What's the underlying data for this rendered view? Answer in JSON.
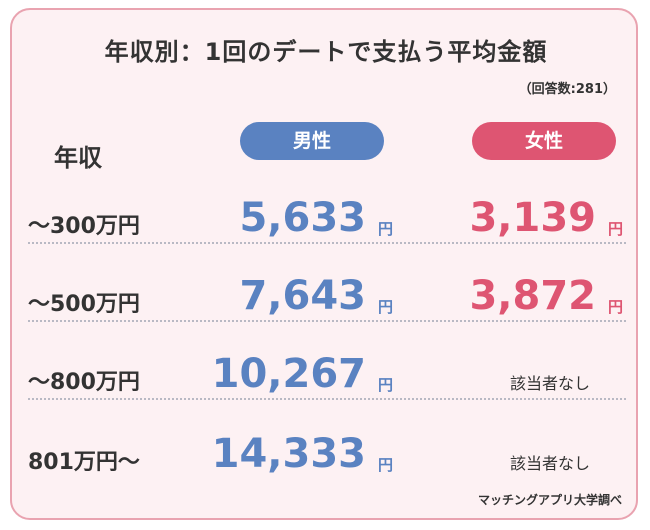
{
  "title": "年収別：1回のデートで支払う平均金額",
  "note": "（回答数:281）",
  "row_header": "年収",
  "source": "マッチングアプリ大学調べ",
  "colors": {
    "male": "#5a82c1",
    "female": "#de5572",
    "background": "#fdf1f3",
    "border": "#e9a3b0"
  },
  "chart_data": {
    "type": "table",
    "columns": [
      "男性",
      "女性"
    ],
    "unit": "円",
    "rows": [
      {
        "label": "〜300万円",
        "male": "5,633",
        "female": "3,139"
      },
      {
        "label": "〜500万円",
        "male": "7,643",
        "female": "3,872"
      },
      {
        "label": "〜800万円",
        "male": "10,267",
        "female": "該当者なし"
      },
      {
        "label": "801万円〜",
        "male": "14,333",
        "female": "該当者なし"
      }
    ]
  }
}
